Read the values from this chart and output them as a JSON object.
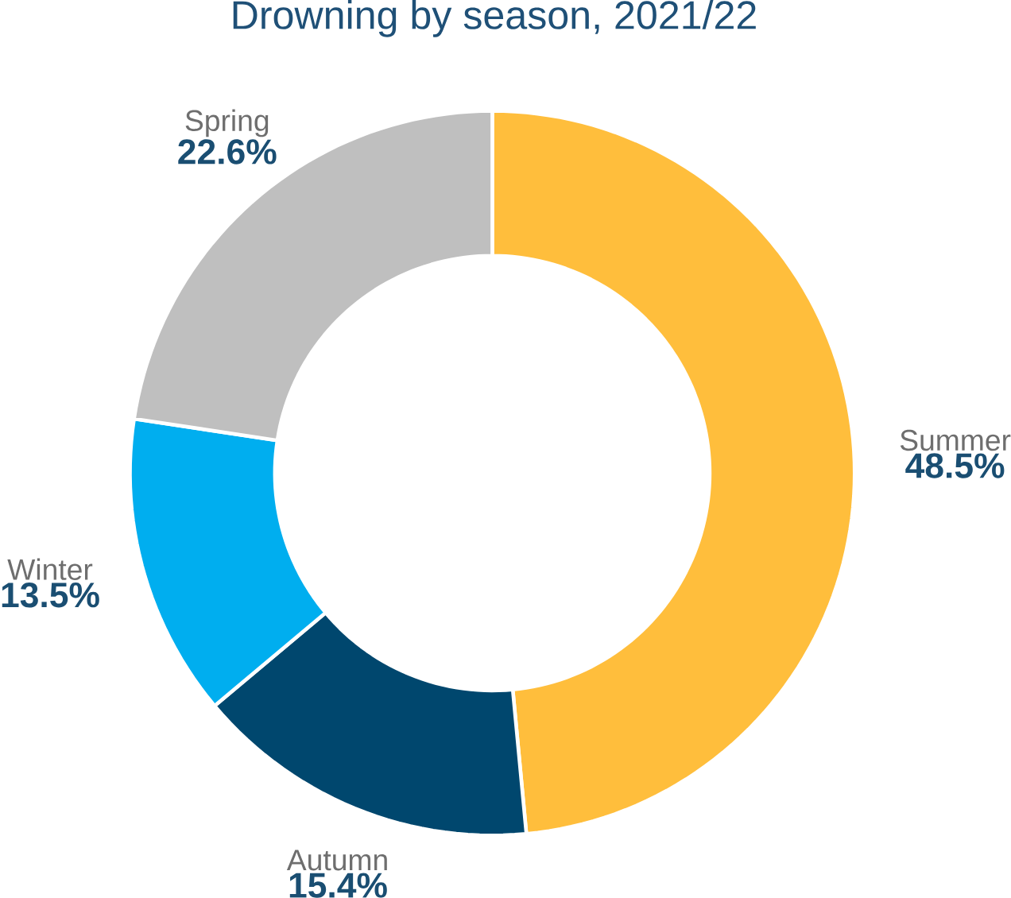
{
  "chart_data": {
    "type": "donut",
    "title": "Drowning by season, 2021/22",
    "categories": [
      "Summer",
      "Autumn",
      "Winter",
      "Spring"
    ],
    "values": [
      48.5,
      15.4,
      13.5,
      22.6
    ],
    "colors": [
      "#ffbe3c",
      "#00476e",
      "#00aeef",
      "#bfbfbf"
    ],
    "value_labels": [
      "48.5%",
      "15.4%",
      "13.5%",
      "22.6%"
    ]
  }
}
